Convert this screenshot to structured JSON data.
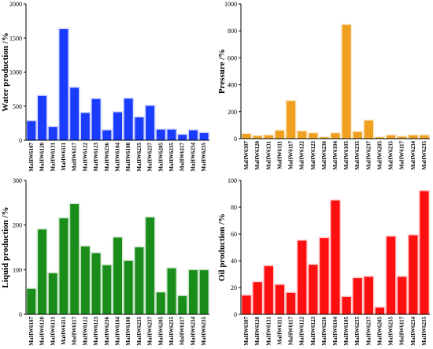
{
  "chart_data": [
    {
      "type": "bar",
      "ylabel": "Water production /%",
      "ylim": [
        0,
        2000
      ],
      "yticks": [
        0,
        500,
        1000,
        1500,
        2000
      ],
      "color": "#1a3cff",
      "categories": [
        "MaHW6107",
        "MaHW6120",
        "MaHW6131",
        "MaHW6111",
        "MaHW6117",
        "MaHW6122",
        "MaHW6123",
        "MaHW6236",
        "MaHW6104",
        "MaHW6108",
        "MaHW6235",
        "MaHW6237",
        "MaHW6205",
        "MaHW6235",
        "MaHW6117",
        "MaHW6234",
        "MaHW6235"
      ],
      "values": [
        280,
        650,
        195,
        1630,
        770,
        400,
        605,
        145,
        410,
        610,
        335,
        505,
        155,
        155,
        80,
        145,
        105
      ]
    },
    {
      "type": "bar",
      "ylabel": "Pressure /%",
      "ylim": [
        0,
        1000
      ],
      "yticks": [
        0,
        200,
        400,
        600,
        800,
        1000
      ],
      "color": "#f0a020",
      "categories": [
        "MaHW6307",
        "MaHW6120",
        "MaHW6131",
        "MaHW6111",
        "MaHW6117",
        "MaHW6122",
        "MaHW6123",
        "MaHW6236",
        "MaHW6104",
        "MaHW6105",
        "MaHW6235",
        "MaHW6237",
        "MaHW6205",
        "MaHW6235",
        "MaHW6117",
        "MaHW6234",
        "MaHW6235"
      ],
      "values": [
        35,
        20,
        25,
        60,
        280,
        55,
        40,
        10,
        40,
        845,
        50,
        135,
        10,
        25,
        15,
        25,
        25
      ]
    },
    {
      "type": "bar",
      "ylabel": "Liquid production /%",
      "ylim": [
        0,
        300
      ],
      "yticks": [
        0,
        100,
        200,
        300
      ],
      "color": "#1a8c1a",
      "categories": [
        "MaHW6107",
        "MaHW6120",
        "MaHW6131",
        "MaHW6111",
        "MaHW6117",
        "MaHW6122",
        "MaHW6123",
        "MaHW6236",
        "MaHW6104",
        "MaHW6108",
        "MaHW6235",
        "MaHW6237",
        "MaHW6205",
        "MaHW6235",
        "MaHW6117",
        "MaHW6234",
        "MaHW6235"
      ],
      "values": [
        57,
        190,
        92,
        215,
        247,
        152,
        137,
        110,
        172,
        120,
        150,
        217,
        49,
        103,
        41,
        99,
        99
      ]
    },
    {
      "type": "bar",
      "ylabel": "Oil production /%",
      "ylim": [
        0,
        100
      ],
      "yticks": [
        0,
        20,
        40,
        60,
        80,
        100
      ],
      "color": "#ff1010",
      "categories": [
        "MaHW6307",
        "MaHW6120",
        "MaHW6131",
        "MaHW6111",
        "MaHW6117",
        "MaHW6122",
        "MaHW6123",
        "MaHW6236",
        "MaHW6104",
        "MaHW6105",
        "MaHW6235",
        "MaHW6237",
        "MaHW6205",
        "MaHW6235",
        "MaHW6117",
        "MaHW6234",
        "MaHW6235"
      ],
      "values": [
        14,
        24,
        36,
        22,
        16,
        55,
        37,
        57,
        85,
        13,
        27,
        28,
        5,
        58,
        28,
        59,
        92
      ]
    }
  ]
}
